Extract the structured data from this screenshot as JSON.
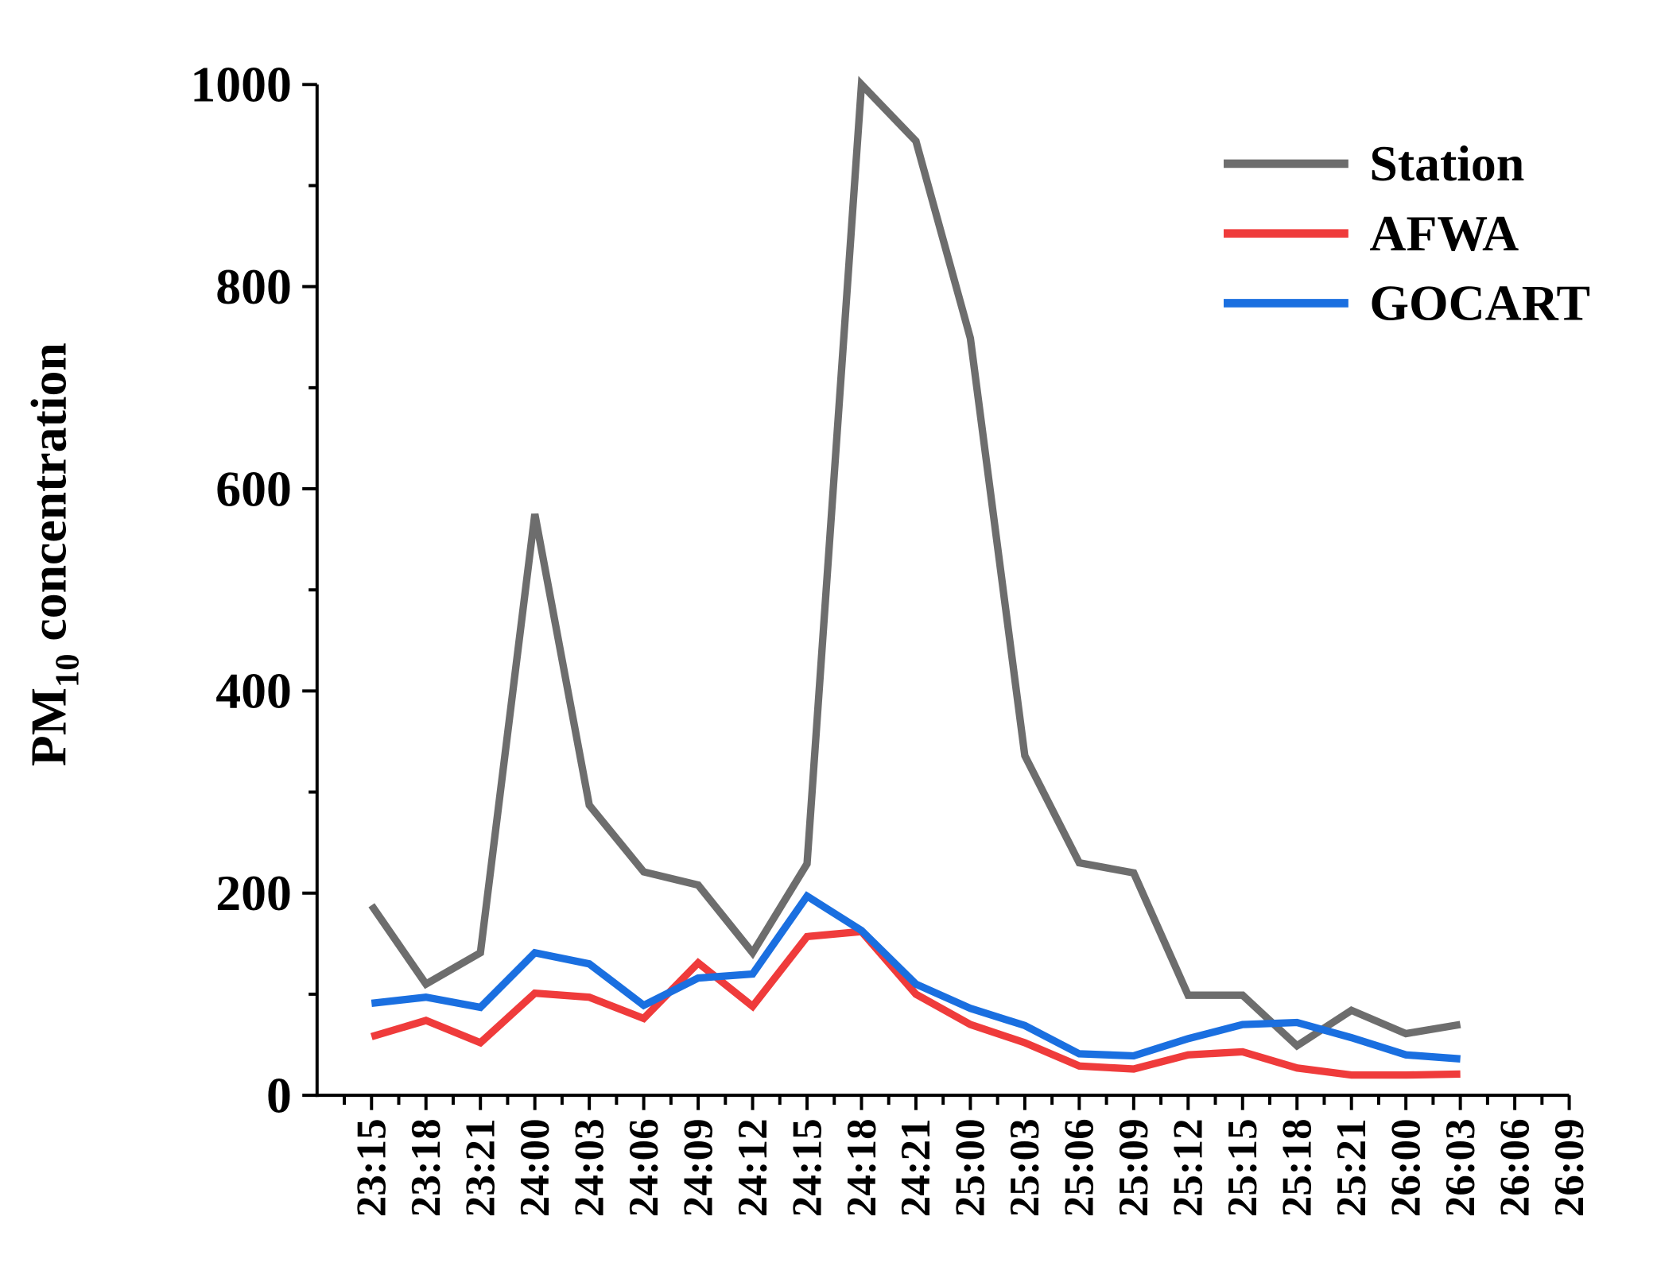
{
  "chart_data": {
    "type": "line",
    "y_label": {
      "main": "PM",
      "subscript": "10",
      "rest": " concentration"
    },
    "categories": [
      "23:15",
      "23:18",
      "23:21",
      "24:00",
      "24:03",
      "24:06",
      "24:09",
      "24:12",
      "24:15",
      "24:18",
      "24:21",
      "25:00",
      "25:03",
      "25:06",
      "25:09",
      "25:12",
      "25:15",
      "25:18",
      "25:21",
      "26:00",
      "26:03",
      "26:06",
      "26:09"
    ],
    "series": [
      {
        "name": "Station",
        "color": "#6d6d6d",
        "values": [
          188,
          110,
          141,
          575,
          287,
          221,
          208,
          141,
          229,
          1000,
          944,
          749,
          336,
          230,
          220,
          99,
          99,
          49,
          84,
          61,
          70,
          null,
          null
        ]
      },
      {
        "name": "AFWA",
        "color": "#ef3b3b",
        "values": [
          58,
          74,
          52,
          101,
          97,
          76,
          131,
          88,
          157,
          162,
          100,
          70,
          52,
          29,
          26,
          40,
          43,
          27,
          20,
          20,
          21,
          null,
          null
        ]
      },
      {
        "name": "GOCART",
        "color": "#1a6fe0",
        "values": [
          91,
          97,
          87,
          141,
          130,
          89,
          116,
          120,
          197,
          163,
          110,
          86,
          69,
          41,
          39,
          56,
          70,
          72,
          57,
          40,
          36,
          null,
          null
        ]
      }
    ],
    "ylim": [
      0,
      1000
    ],
    "yticks": [
      0,
      200,
      400,
      600,
      800,
      1000
    ],
    "legend": "upper right",
    "grid": false
  }
}
